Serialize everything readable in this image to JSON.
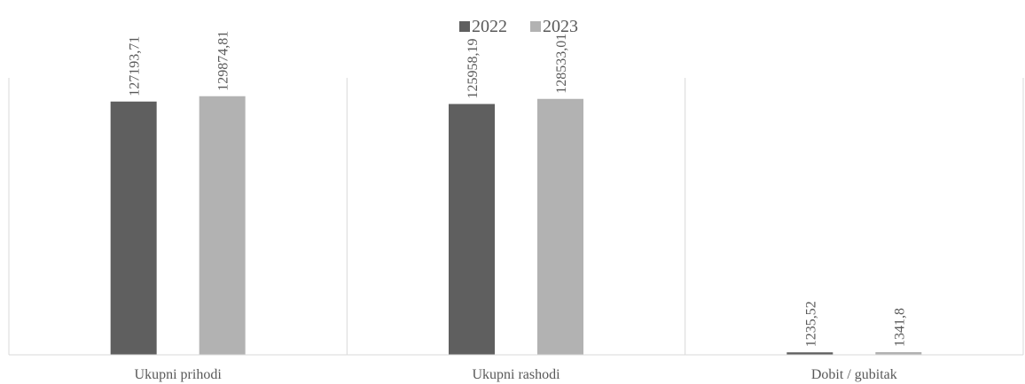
{
  "chart_data": {
    "type": "bar",
    "categories": [
      "Ukupni prihodi",
      "Ukupni rashodi",
      "Dobit / gubitak"
    ],
    "series": [
      {
        "name": "2022",
        "values": [
          127193.71,
          125958.19,
          1235.52
        ],
        "labels": [
          "127193,71",
          "125958,19",
          "1235,52"
        ],
        "color": "#5f5f5f"
      },
      {
        "name": "2023",
        "values": [
          129874.81,
          128533.01,
          1341.8
        ],
        "labels": [
          "129874,81",
          "128533,01",
          "1341,8"
        ],
        "color": "#b2b2b2"
      }
    ],
    "title": "",
    "xlabel": "",
    "ylabel": "",
    "ylim": [
      0,
      140000
    ],
    "grid": false,
    "legend_position": "top-center",
    "axis_color": "#d9d9d9"
  }
}
